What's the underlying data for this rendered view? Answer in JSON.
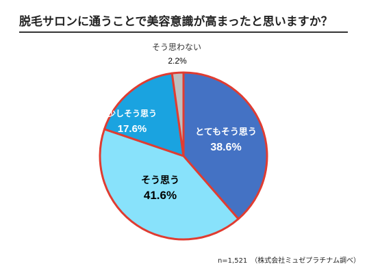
{
  "title": "脱毛サロンに通うことで美容意識が高まったと思いますか？",
  "note": "n=1,521　（株式会社ミュゼプラチナム調べ）",
  "chart_data": {
    "type": "pie",
    "title": "脱毛サロンに通うことで美容意識が高まったと思いますか？",
    "start": "top, clockwise",
    "slices": [
      {
        "label": "とてもそう思う",
        "value": 38.6,
        "value_label": "38.6%",
        "color": "#4472C4"
      },
      {
        "label": "そう思う",
        "value": 41.6,
        "value_label": "41.6%",
        "color": "#88E2FB"
      },
      {
        "label": "少しそう思う",
        "value": 17.6,
        "value_label": "17.6%",
        "color": "#1AA3E0"
      },
      {
        "label": "そう思わない",
        "value": 2.2,
        "value_label": "2.2%",
        "color": "#BFBFBF"
      }
    ],
    "slice_border_color": "#E03C31",
    "n": 1521
  }
}
